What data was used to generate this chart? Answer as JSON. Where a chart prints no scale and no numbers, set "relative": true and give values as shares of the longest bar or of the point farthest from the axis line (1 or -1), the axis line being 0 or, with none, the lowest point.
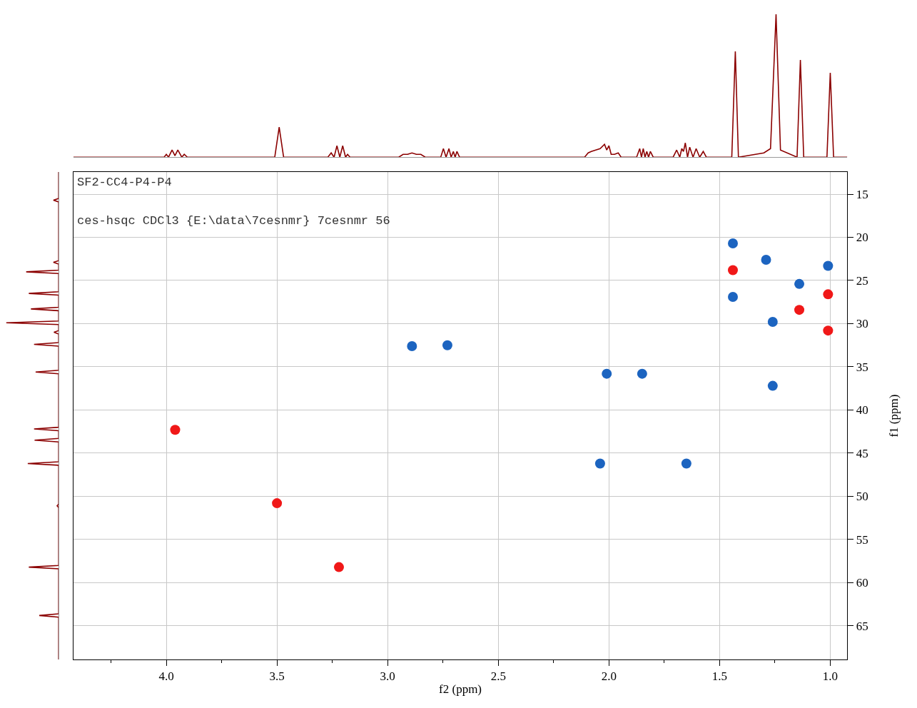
{
  "chart_data": [
    {
      "type": "line",
      "relative": true,
      "tick_labels": false,
      "marker": "none",
      "line_style": "solid",
      "xlim": [
        4.42,
        0.923
      ],
      "series": [
        {
          "color": "#8b0000",
          "x": [
            4.42,
            4.01,
            4.0,
            3.99,
            3.974,
            3.961,
            3.948,
            3.93,
            3.919,
            3.905,
            3.51,
            3.49,
            3.47,
            3.27,
            3.255,
            3.242,
            3.229,
            3.216,
            3.203,
            3.19,
            3.181,
            3.17,
            2.95,
            2.93,
            2.91,
            2.89,
            2.87,
            2.85,
            2.83,
            2.76,
            2.748,
            2.736,
            2.723,
            2.713,
            2.703,
            2.695,
            2.687,
            2.675,
            2.11,
            2.094,
            2.08,
            2.06,
            2.04,
            2.02,
            2.01,
            2.0,
            1.99,
            1.975,
            1.958,
            1.945,
            1.875,
            1.861,
            1.853,
            1.845,
            1.837,
            1.829,
            1.821,
            1.813,
            1.8,
            1.71,
            1.694,
            1.68,
            1.671,
            1.663,
            1.655,
            1.645,
            1.635,
            1.62,
            1.606,
            1.59,
            1.574,
            1.56,
            1.445,
            1.429,
            1.415,
            1.3,
            1.27,
            1.245,
            1.225,
            1.15,
            1.135,
            1.12,
            1.015,
            1.0,
            0.985,
            0.923
          ],
          "values": [
            0,
            0,
            0.02,
            0,
            0.05,
            0.01,
            0.05,
            0,
            0.02,
            0,
            0,
            0.21,
            0,
            0,
            0.03,
            0,
            0.08,
            0,
            0.08,
            0,
            0.02,
            0,
            0,
            0.02,
            0.02,
            0.03,
            0.02,
            0.02,
            0,
            0,
            0.06,
            0,
            0.06,
            0,
            0.04,
            0,
            0.04,
            0,
            0,
            0.03,
            0.04,
            0.05,
            0.06,
            0.09,
            0.05,
            0.08,
            0.02,
            0.02,
            0.03,
            0,
            0,
            0.06,
            0,
            0.06,
            0,
            0.04,
            0,
            0.04,
            0,
            0,
            0.05,
            0,
            0.06,
            0.04,
            0.1,
            0,
            0.07,
            0,
            0.06,
            0,
            0.04,
            0,
            0,
            0.74,
            0,
            0.03,
            0.06,
            1.0,
            0.05,
            0,
            0.68,
            0,
            0,
            0.59,
            0,
            0
          ]
        }
      ]
    },
    {
      "type": "line",
      "relative": true,
      "orientation": "horizontal",
      "tick_labels": false,
      "marker": "none",
      "line_style": "solid",
      "ylim": [
        68.9,
        12.44
      ],
      "series": [
        {
          "color": "#8b0000",
          "x": [
            12.44,
            15.5,
            15.7,
            15.9,
            22.7,
            22.9,
            23.1,
            23.8,
            24.0,
            24.2,
            26.3,
            26.5,
            26.7,
            28.1,
            28.3,
            28.5,
            29.7,
            29.9,
            30.1,
            30.8,
            31.0,
            31.2,
            32.2,
            32.4,
            32.6,
            35.4,
            35.6,
            35.8,
            42.0,
            42.2,
            42.4,
            43.3,
            43.5,
            43.7,
            46.0,
            46.2,
            46.4,
            50.9,
            51.1,
            51.3,
            58.0,
            58.2,
            58.4,
            63.6,
            63.8,
            64.0,
            68.9
          ],
          "values": [
            0,
            0,
            -0.1,
            0,
            0,
            -0.1,
            0,
            0,
            -0.62,
            0,
            0,
            -0.57,
            0,
            0,
            -0.53,
            0,
            0,
            -1.0,
            0,
            0,
            -0.09,
            0,
            0,
            -0.47,
            0,
            0,
            -0.44,
            0,
            0,
            -0.47,
            0,
            0,
            -0.46,
            0,
            0,
            -0.59,
            0,
            0,
            -0.03,
            0,
            0,
            -0.57,
            0,
            0,
            -0.37,
            0,
            0
          ]
        }
      ]
    },
    {
      "type": "scatter",
      "xlabel": "f2 (ppm)",
      "ylabel": "f1 (ppm)",
      "grid": true,
      "marker": "circle",
      "xlim": [
        4.42,
        0.923
      ],
      "ylim": [
        68.9,
        12.44
      ],
      "xticks": [
        {
          "value": 4.0,
          "label": "4.0"
        },
        {
          "value": 3.5,
          "label": "3.5"
        },
        {
          "value": 3.0,
          "label": "3.0"
        },
        {
          "value": 2.5,
          "label": "2.5"
        },
        {
          "value": 2.0,
          "label": "2.0"
        },
        {
          "value": 1.5,
          "label": "1.5"
        },
        {
          "value": 1.0,
          "label": "1.0"
        },
        {
          "value": 4.25,
          "label": null
        },
        {
          "value": 3.75,
          "label": null
        },
        {
          "value": 3.25,
          "label": null
        },
        {
          "value": 2.75,
          "label": null
        },
        {
          "value": 2.25,
          "label": null
        },
        {
          "value": 1.75,
          "label": null
        },
        {
          "value": 1.25,
          "label": null
        }
      ],
      "yticks": [
        15,
        20,
        25,
        30,
        35,
        40,
        45,
        50,
        55,
        60,
        65
      ],
      "annotations": [
        "SF2-CC4-P4-P4",
        "ces-hsqc CDCl3 {E:\\data\\7cesnmr} 7cesnmr 56"
      ],
      "series": [
        {
          "color": "#f01818",
          "x": [
            3.96,
            3.5,
            3.22,
            1.44,
            1.14,
            1.01,
            1.01
          ],
          "values": [
            42.3,
            50.8,
            58.2,
            23.8,
            28.4,
            26.6,
            30.8
          ]
        },
        {
          "color": "#1c64c0",
          "x": [
            2.89,
            2.73,
            2.01,
            1.85,
            2.04,
            1.65,
            1.26,
            1.29,
            1.26,
            1.44,
            1.44,
            1.14,
            1.01
          ],
          "values": [
            32.6,
            32.5,
            35.8,
            35.8,
            46.2,
            46.2,
            29.8,
            22.6,
            37.2,
            20.7,
            26.9,
            25.4,
            23.3
          ]
        }
      ]
    }
  ]
}
